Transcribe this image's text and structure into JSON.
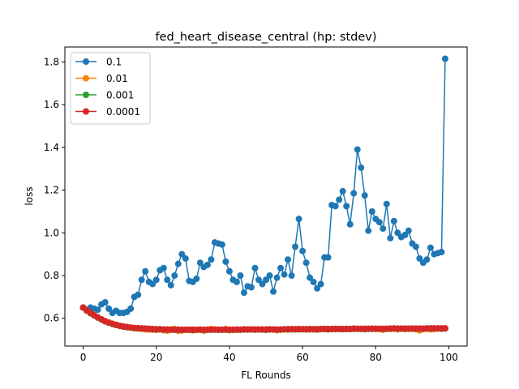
{
  "chart_data": {
    "type": "line",
    "title": "fed_heart_disease_central (hp: stdev)",
    "xlabel": "FL Rounds",
    "ylabel": "loss",
    "xlim": [
      -5,
      105
    ],
    "ylim": [
      0.47,
      1.87
    ],
    "xticks": [
      0,
      20,
      40,
      60,
      80,
      100
    ],
    "yticks": [
      0.6,
      0.8,
      1.0,
      1.2,
      1.4,
      1.6,
      1.8
    ],
    "xtick_labels": [
      "0",
      "20",
      "40",
      "60",
      "80",
      "100"
    ],
    "ytick_labels": [
      "0.6",
      "0.8",
      "1.0",
      "1.2",
      "1.4",
      "1.6",
      "1.8"
    ],
    "grid": false,
    "legend_position": "top-left",
    "series": [
      {
        "name": "0.1",
        "color": "#1f77b4",
        "x": [
          0,
          1,
          2,
          3,
          4,
          5,
          6,
          7,
          8,
          9,
          10,
          11,
          12,
          13,
          14,
          15,
          16,
          17,
          18,
          19,
          20,
          21,
          22,
          23,
          24,
          25,
          26,
          27,
          28,
          29,
          30,
          31,
          32,
          33,
          34,
          35,
          36,
          37,
          38,
          39,
          40,
          41,
          42,
          43,
          44,
          45,
          46,
          47,
          48,
          49,
          50,
          51,
          52,
          53,
          54,
          55,
          56,
          57,
          58,
          59,
          60,
          61,
          62,
          63,
          64,
          65,
          66,
          67,
          68,
          69,
          70,
          71,
          72,
          73,
          74,
          75,
          76,
          77,
          78,
          79,
          80,
          81,
          82,
          83,
          84,
          85,
          86,
          87,
          88,
          89,
          90,
          91,
          92,
          93,
          94,
          95,
          96,
          97,
          98,
          99
        ],
        "values": [
          0.65,
          0.64,
          0.65,
          0.645,
          0.64,
          0.665,
          0.675,
          0.645,
          0.625,
          0.635,
          0.625,
          0.625,
          0.63,
          0.645,
          0.7,
          0.71,
          0.78,
          0.82,
          0.77,
          0.76,
          0.78,
          0.825,
          0.835,
          0.78,
          0.755,
          0.8,
          0.855,
          0.9,
          0.88,
          0.775,
          0.77,
          0.785,
          0.86,
          0.84,
          0.85,
          0.875,
          0.955,
          0.95,
          0.945,
          0.865,
          0.82,
          0.78,
          0.77,
          0.8,
          0.72,
          0.75,
          0.745,
          0.835,
          0.78,
          0.76,
          0.78,
          0.8,
          0.725,
          0.79,
          0.835,
          0.805,
          0.875,
          0.8,
          0.935,
          1.065,
          0.915,
          0.86,
          0.79,
          0.77,
          0.74,
          0.76,
          0.885,
          0.885,
          1.13,
          1.125,
          1.155,
          1.195,
          1.125,
          1.04,
          1.185,
          1.39,
          1.305,
          1.175,
          1.01,
          1.1,
          1.065,
          1.05,
          1.02,
          1.135,
          0.975,
          1.055,
          1.0,
          0.98,
          0.99,
          1.01,
          0.95,
          0.935,
          0.88,
          0.86,
          0.875,
          0.93,
          0.9,
          0.905,
          0.91,
          1.815
        ]
      },
      {
        "name": "0.01",
        "color": "#ff7f0e",
        "x": [
          0,
          1,
          2,
          3,
          4,
          5,
          6,
          7,
          8,
          9,
          10,
          11,
          12,
          13,
          14,
          15,
          16,
          17,
          18,
          19,
          20,
          21,
          22,
          23,
          24,
          25,
          26,
          27,
          28,
          29,
          30,
          31,
          32,
          33,
          34,
          35,
          36,
          37,
          38,
          39,
          40,
          41,
          42,
          43,
          44,
          45,
          46,
          47,
          48,
          49,
          50,
          51,
          52,
          53,
          54,
          55,
          56,
          57,
          58,
          59,
          60,
          61,
          62,
          63,
          64,
          65,
          66,
          67,
          68,
          69,
          70,
          71,
          72,
          73,
          74,
          75,
          76,
          77,
          78,
          79,
          80,
          81,
          82,
          83,
          84,
          85,
          86,
          87,
          88,
          89,
          90,
          91,
          92,
          93,
          94,
          95,
          96,
          97,
          98,
          99
        ],
        "values": [
          0.65,
          0.635,
          0.625,
          0.615,
          0.605,
          0.595,
          0.585,
          0.58,
          0.575,
          0.57,
          0.565,
          0.56,
          0.558,
          0.556,
          0.553,
          0.552,
          0.55,
          0.548,
          0.547,
          0.546,
          0.545,
          0.548,
          0.544,
          0.542,
          0.545,
          0.55,
          0.541,
          0.543,
          0.546,
          0.545,
          0.543,
          0.545,
          0.548,
          0.542,
          0.545,
          0.55,
          0.548,
          0.545,
          0.546,
          0.55,
          0.544,
          0.545,
          0.548,
          0.546,
          0.549,
          0.547,
          0.548,
          0.546,
          0.548,
          0.547,
          0.545,
          0.549,
          0.547,
          0.544,
          0.546,
          0.548,
          0.547,
          0.549,
          0.548,
          0.55,
          0.549,
          0.547,
          0.55,
          0.548,
          0.546,
          0.549,
          0.55,
          0.547,
          0.549,
          0.551,
          0.55,
          0.548,
          0.551,
          0.549,
          0.552,
          0.55,
          0.55,
          0.548,
          0.55,
          0.552,
          0.551,
          0.549,
          0.546,
          0.551,
          0.55,
          0.553,
          0.548,
          0.551,
          0.549,
          0.55,
          0.551,
          0.548,
          0.543,
          0.549,
          0.55,
          0.548,
          0.549,
          0.552,
          0.55,
          0.553
        ]
      },
      {
        "name": "0.001",
        "color": "#2ca02c",
        "x": [
          0,
          1,
          2,
          3,
          4,
          5,
          6,
          7,
          8,
          9,
          10,
          11,
          12,
          13,
          14,
          15,
          16,
          17,
          18,
          19,
          20,
          21,
          22,
          23,
          24,
          25,
          26,
          27,
          28,
          29,
          30,
          31,
          32,
          33,
          34,
          35,
          36,
          37,
          38,
          39,
          40,
          41,
          42,
          43,
          44,
          45,
          46,
          47,
          48,
          49,
          50,
          51,
          52,
          53,
          54,
          55,
          56,
          57,
          58,
          59,
          60,
          61,
          62,
          63,
          64,
          65,
          66,
          67,
          68,
          69,
          70,
          71,
          72,
          73,
          74,
          75,
          76,
          77,
          78,
          79,
          80,
          81,
          82,
          83,
          84,
          85,
          86,
          87,
          88,
          89,
          90,
          91,
          92,
          93,
          94,
          95,
          96,
          97,
          98,
          99
        ],
        "values": [
          0.65,
          0.636,
          0.623,
          0.613,
          0.603,
          0.594,
          0.586,
          0.579,
          0.573,
          0.568,
          0.564,
          0.561,
          0.558,
          0.556,
          0.554,
          0.553,
          0.552,
          0.551,
          0.55,
          0.549,
          0.548,
          0.548,
          0.547,
          0.547,
          0.547,
          0.546,
          0.546,
          0.546,
          0.546,
          0.546,
          0.546,
          0.546,
          0.546,
          0.546,
          0.546,
          0.546,
          0.546,
          0.546,
          0.546,
          0.546,
          0.546,
          0.546,
          0.546,
          0.546,
          0.547,
          0.547,
          0.547,
          0.547,
          0.547,
          0.547,
          0.547,
          0.547,
          0.547,
          0.547,
          0.547,
          0.548,
          0.548,
          0.548,
          0.548,
          0.548,
          0.548,
          0.548,
          0.548,
          0.548,
          0.548,
          0.549,
          0.549,
          0.549,
          0.549,
          0.549,
          0.549,
          0.549,
          0.549,
          0.549,
          0.55,
          0.55,
          0.55,
          0.55,
          0.55,
          0.55,
          0.55,
          0.55,
          0.55,
          0.55,
          0.551,
          0.551,
          0.551,
          0.551,
          0.551,
          0.551,
          0.551,
          0.551,
          0.551,
          0.551,
          0.552,
          0.552,
          0.552,
          0.552,
          0.552,
          0.552
        ]
      },
      {
        "name": "0.0001",
        "color": "#d62728",
        "x": [
          0,
          1,
          2,
          3,
          4,
          5,
          6,
          7,
          8,
          9,
          10,
          11,
          12,
          13,
          14,
          15,
          16,
          17,
          18,
          19,
          20,
          21,
          22,
          23,
          24,
          25,
          26,
          27,
          28,
          29,
          30,
          31,
          32,
          33,
          34,
          35,
          36,
          37,
          38,
          39,
          40,
          41,
          42,
          43,
          44,
          45,
          46,
          47,
          48,
          49,
          50,
          51,
          52,
          53,
          54,
          55,
          56,
          57,
          58,
          59,
          60,
          61,
          62,
          63,
          64,
          65,
          66,
          67,
          68,
          69,
          70,
          71,
          72,
          73,
          74,
          75,
          76,
          77,
          78,
          79,
          80,
          81,
          82,
          83,
          84,
          85,
          86,
          87,
          88,
          89,
          90,
          91,
          92,
          93,
          94,
          95,
          96,
          97,
          98,
          99
        ],
        "values": [
          0.65,
          0.637,
          0.625,
          0.614,
          0.604,
          0.595,
          0.587,
          0.58,
          0.574,
          0.569,
          0.565,
          0.562,
          0.559,
          0.557,
          0.555,
          0.554,
          0.553,
          0.552,
          0.551,
          0.55,
          0.549,
          0.549,
          0.548,
          0.548,
          0.548,
          0.547,
          0.547,
          0.547,
          0.547,
          0.547,
          0.547,
          0.547,
          0.547,
          0.547,
          0.547,
          0.547,
          0.547,
          0.547,
          0.547,
          0.547,
          0.547,
          0.547,
          0.547,
          0.547,
          0.548,
          0.548,
          0.548,
          0.548,
          0.548,
          0.548,
          0.548,
          0.548,
          0.548,
          0.548,
          0.548,
          0.549,
          0.549,
          0.549,
          0.549,
          0.549,
          0.549,
          0.549,
          0.549,
          0.549,
          0.549,
          0.55,
          0.55,
          0.55,
          0.55,
          0.55,
          0.55,
          0.55,
          0.55,
          0.55,
          0.551,
          0.551,
          0.551,
          0.551,
          0.551,
          0.551,
          0.551,
          0.551,
          0.551,
          0.551,
          0.552,
          0.552,
          0.552,
          0.552,
          0.552,
          0.552,
          0.552,
          0.552,
          0.552,
          0.552,
          0.553,
          0.553,
          0.553,
          0.553,
          0.553,
          0.553
        ]
      }
    ]
  }
}
